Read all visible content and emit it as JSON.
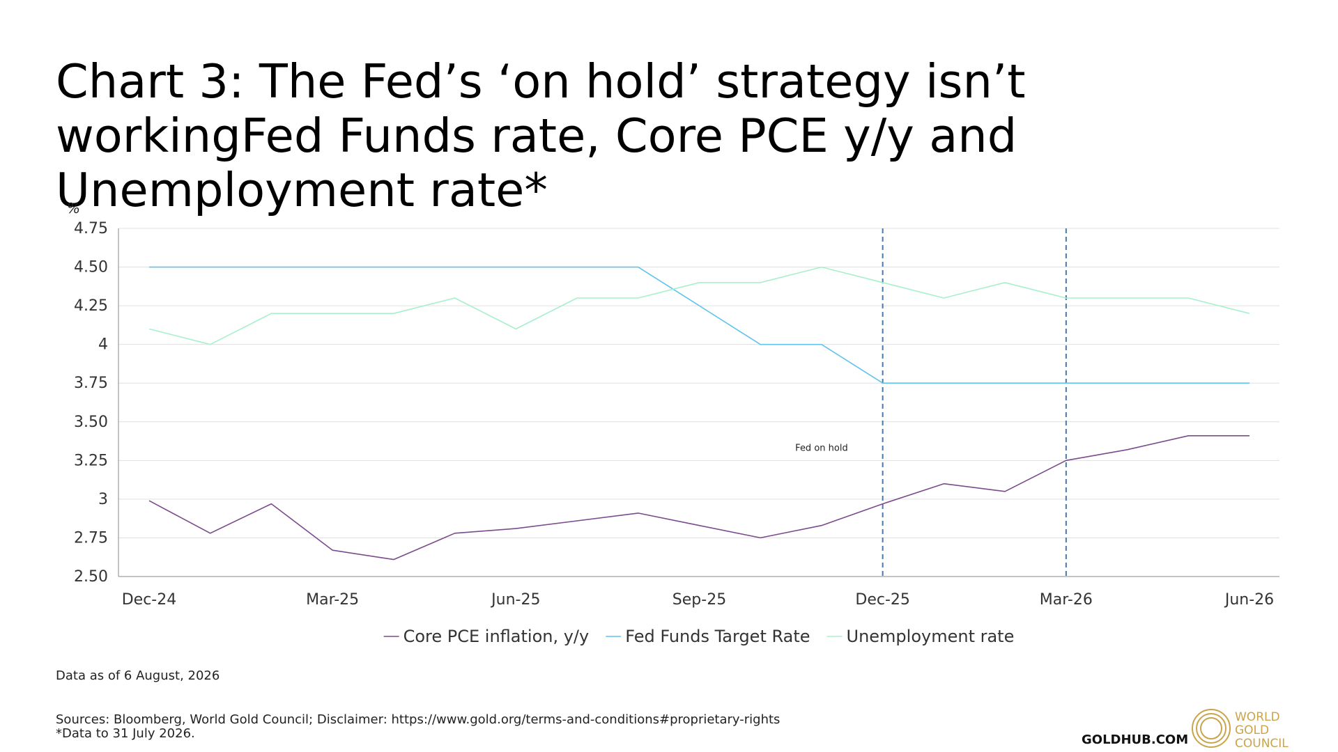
{
  "title": "Chart 3: The Fed’s ‘on hold’ strategy isn’t workingFed Funds rate, Core PCE y/y and Unemployment rate*",
  "footer": {
    "as_of": "Data as of 6 August, 2026",
    "sources": "Sources: Bloomberg, World Gold Council; Disclaimer: https://www.gold.org/terms-and-conditions#proprietary-rights",
    "note": "*Data to 31 July 2026.",
    "site": "GOLDHUB.COM",
    "logo_lines": [
      "WORLD",
      "GOLD",
      "COUNCIL"
    ]
  },
  "colors": {
    "core_pce": "#7b4a8c",
    "fed_funds": "#5ec4ee",
    "unemployment": "#a8f0cc",
    "marker_line": "#4a78a8",
    "gridline": "#e0e0e0",
    "axis": "#888888",
    "brand_gold": "#c9a44a"
  },
  "chart_data": {
    "type": "line",
    "ylabel": "%",
    "ylim": [
      2.5,
      4.75
    ],
    "yticks": [
      "2.50",
      "2.75",
      "3",
      "3.25",
      "3.50",
      "3.75",
      "4",
      "4.25",
      "4.50",
      "4.75"
    ],
    "ytick_values": [
      2.5,
      2.75,
      3,
      3.25,
      3.5,
      3.75,
      4,
      4.25,
      4.5,
      4.75
    ],
    "x": [
      "Dec-24",
      "Jan-25",
      "Feb-25",
      "Mar-25",
      "Apr-25",
      "May-25",
      "Jun-25",
      "Jul-25",
      "Aug-25",
      "Sep-25",
      "Oct-25",
      "Nov-25",
      "Dec-25",
      "Jan-26",
      "Feb-26",
      "Mar-26",
      "Apr-26",
      "May-26",
      "Jun-26"
    ],
    "xticks": [
      "Dec-24",
      "Mar-25",
      "Jun-25",
      "Sep-25",
      "Dec-25",
      "Mar-26",
      "Jun-26"
    ],
    "grid": true,
    "legend_position": "bottom-center",
    "series": [
      {
        "name": "Core PCE inflation, y/y",
        "color_key": "core_pce",
        "values": [
          2.99,
          2.78,
          2.97,
          2.67,
          2.61,
          2.78,
          2.81,
          2.86,
          2.91,
          2.83,
          2.75,
          2.83,
          2.97,
          3.1,
          3.05,
          3.25,
          3.32,
          3.41,
          3.41
        ]
      },
      {
        "name": "Fed Funds Target Rate",
        "color_key": "fed_funds",
        "values": [
          4.5,
          4.5,
          4.5,
          4.5,
          4.5,
          4.5,
          4.5,
          4.5,
          4.5,
          4.25,
          4.0,
          4.0,
          3.75,
          3.75,
          3.75,
          3.75,
          3.75,
          3.75,
          3.75
        ]
      },
      {
        "name": "Unemployment rate",
        "color_key": "unemployment",
        "values": [
          4.1,
          4.0,
          4.2,
          4.2,
          4.2,
          4.3,
          4.1,
          4.3,
          4.3,
          4.4,
          4.4,
          4.5,
          4.4,
          4.3,
          4.4,
          4.3,
          4.3,
          4.3,
          4.2
        ]
      }
    ],
    "vertical_markers": [
      "Dec-25",
      "Mar-26"
    ],
    "annotations": [
      {
        "text": "Fed on hold",
        "x": "Nov-25",
        "y": 3.33
      }
    ]
  }
}
